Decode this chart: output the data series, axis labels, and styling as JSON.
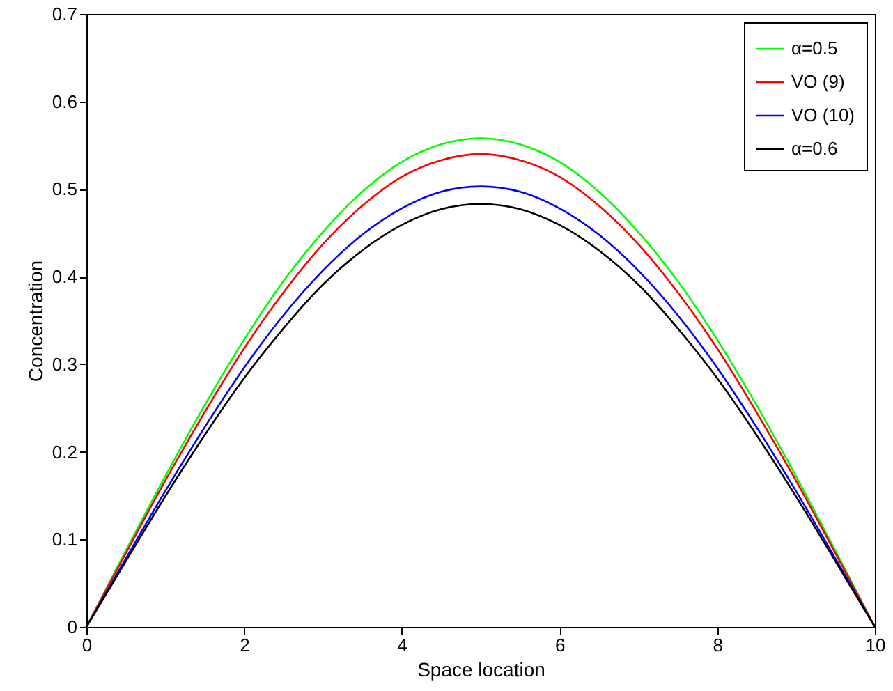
{
  "chart_data": {
    "type": "line",
    "xlabel": "Space location",
    "ylabel": "Concentration",
    "x": [
      0,
      0.5,
      1,
      1.5,
      2,
      2.5,
      3,
      3.5,
      4,
      4.5,
      5,
      5.5,
      6,
      6.5,
      7,
      7.5,
      8,
      8.5,
      9,
      9.5,
      10
    ],
    "series": [
      {
        "name": "α=0.5",
        "color": "#00ff00",
        "values": [
          0,
          0.087,
          0.172,
          0.253,
          0.328,
          0.395,
          0.451,
          0.497,
          0.531,
          0.551,
          0.558,
          0.551,
          0.531,
          0.497,
          0.451,
          0.395,
          0.328,
          0.253,
          0.172,
          0.087,
          0
        ]
      },
      {
        "name": "VO (9)",
        "color": "#ff0000",
        "values": [
          0,
          0.084,
          0.167,
          0.245,
          0.318,
          0.382,
          0.437,
          0.481,
          0.514,
          0.533,
          0.54,
          0.533,
          0.514,
          0.481,
          0.437,
          0.382,
          0.318,
          0.245,
          0.167,
          0.084,
          0
        ]
      },
      {
        "name": "VO (10)",
        "color": "#0000ff",
        "values": [
          0,
          0.078,
          0.155,
          0.228,
          0.296,
          0.356,
          0.407,
          0.448,
          0.478,
          0.497,
          0.503,
          0.497,
          0.478,
          0.448,
          0.407,
          0.356,
          0.296,
          0.228,
          0.155,
          0.078,
          0
        ]
      },
      {
        "name": "α=0.6",
        "color": "#000000",
        "values": [
          0,
          0.075,
          0.149,
          0.219,
          0.284,
          0.341,
          0.391,
          0.43,
          0.459,
          0.477,
          0.483,
          0.477,
          0.459,
          0.43,
          0.391,
          0.341,
          0.284,
          0.219,
          0.149,
          0.075,
          0
        ]
      }
    ],
    "xlim": [
      0,
      10
    ],
    "xticks": [
      0,
      2,
      4,
      6,
      8,
      10
    ],
    "ylim": [
      0,
      0.7
    ],
    "yticks": [
      0,
      0.1,
      0.2,
      0.3,
      0.4,
      0.5,
      0.6,
      0.7
    ],
    "grid": false,
    "legend": "top right",
    "marker": "none",
    "line_style": "solid"
  }
}
